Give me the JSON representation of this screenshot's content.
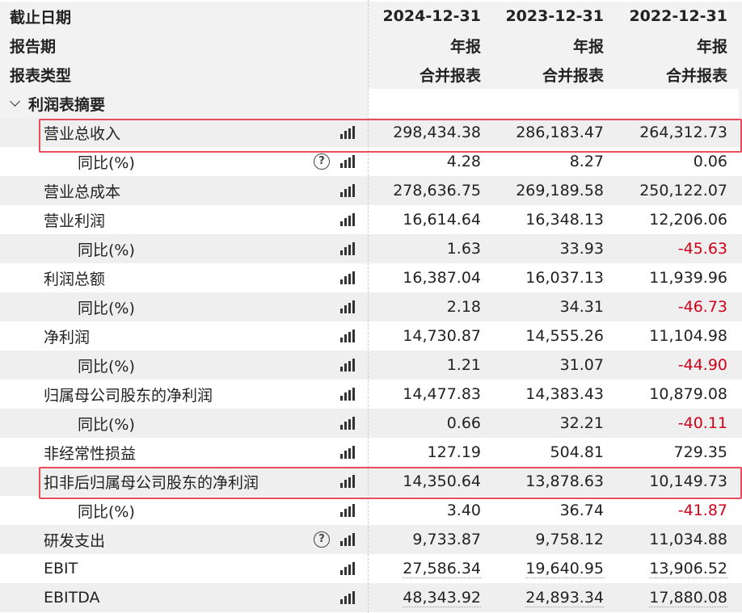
{
  "header": {
    "rows": [
      {
        "label": "截止日期",
        "values": [
          "2024-12-31",
          "2023-12-31",
          "2022-12-31"
        ]
      },
      {
        "label": "报告期",
        "values": [
          "年报",
          "年报",
          "年报"
        ]
      },
      {
        "label": "报表类型",
        "values": [
          "合并报表",
          "合并报表",
          "合并报表"
        ]
      }
    ]
  },
  "section": {
    "title": "利润表摘要"
  },
  "rows": [
    {
      "label": "营业总收入",
      "values": [
        "298,434.38",
        "286,183.47",
        "264,312.73"
      ]
    },
    {
      "label": "同比(%)",
      "values": [
        "4.28",
        "8.27",
        "0.06"
      ]
    },
    {
      "label": "营业总成本",
      "values": [
        "278,636.75",
        "269,189.58",
        "250,122.07"
      ]
    },
    {
      "label": "营业利润",
      "values": [
        "16,614.64",
        "16,348.13",
        "12,206.06"
      ]
    },
    {
      "label": "同比(%)",
      "values": [
        "1.63",
        "33.93",
        "-45.63"
      ]
    },
    {
      "label": "利润总额",
      "values": [
        "16,387.04",
        "16,037.13",
        "11,939.96"
      ]
    },
    {
      "label": "同比(%)",
      "values": [
        "2.18",
        "34.31",
        "-46.73"
      ]
    },
    {
      "label": "净利润",
      "values": [
        "14,730.87",
        "14,555.26",
        "11,104.98"
      ]
    },
    {
      "label": "同比(%)",
      "values": [
        "1.21",
        "31.07",
        "-44.90"
      ]
    },
    {
      "label": "归属母公司股东的净利润",
      "values": [
        "14,477.83",
        "14,383.43",
        "10,879.08"
      ]
    },
    {
      "label": "同比(%)",
      "values": [
        "0.66",
        "32.21",
        "-40.11"
      ]
    },
    {
      "label": "非经常性损益",
      "values": [
        "127.19",
        "504.81",
        "729.35"
      ]
    },
    {
      "label": "扣非后归属母公司股东的净利润",
      "values": [
        "14,350.64",
        "13,878.63",
        "10,149.73"
      ]
    },
    {
      "label": "同比(%)",
      "values": [
        "3.40",
        "36.74",
        "-41.87"
      ]
    },
    {
      "label": "研发支出",
      "values": [
        "9,733.87",
        "9,758.12",
        "11,034.88"
      ]
    },
    {
      "label": "EBIT",
      "values": [
        "27,586.34",
        "19,640.95",
        "13,906.52"
      ]
    },
    {
      "label": "EBITDA",
      "values": [
        "48,343.92",
        "24,893.34",
        "17,880.08"
      ]
    }
  ],
  "colors": {
    "negative": "#d0021b",
    "highlight_border": "#e84c5b"
  },
  "icons": {
    "chart": "bar-chart-icon",
    "help": "question-circle-icon",
    "collapse": "chevron-down-icon"
  }
}
